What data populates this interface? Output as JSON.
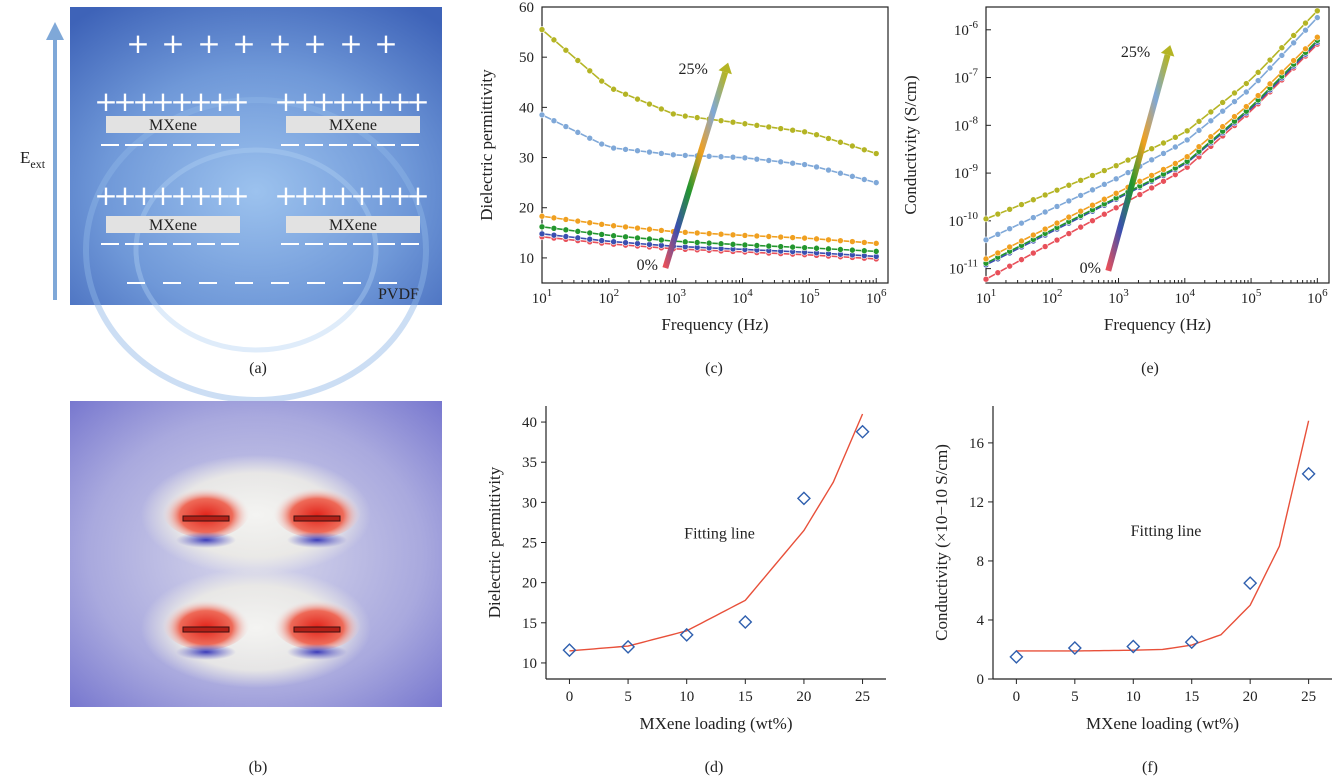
{
  "panels": {
    "a": {
      "label": "(a)",
      "field_label": "E",
      "field_sub": "ext",
      "mxene_label": "MXene",
      "matrix_label": "PVDF",
      "plus": "+",
      "minus": "—"
    },
    "b": {
      "label": "(b)"
    },
    "c": {
      "label": "(c)"
    },
    "d": {
      "label": "(d)"
    },
    "e": {
      "label": "(e)"
    },
    "f": {
      "label": "(f)"
    }
  },
  "colors": {
    "series": [
      "#e8505a",
      "#3a4fb0",
      "#23962e",
      "#f0a020",
      "#7fa8d8",
      "#b4b424"
    ],
    "fit_line": "#e8503a",
    "marker": "#2f5fae",
    "field_arrow": "#7fa8d8",
    "schematic_bg": "#4b74c4"
  },
  "chart_data": [
    {
      "id": "c",
      "type": "line",
      "xlabel": "Frequency (Hz)",
      "ylabel": "Dielectric permittivity",
      "x_scale": "log",
      "xlim": [
        10,
        1500000
      ],
      "ylim": [
        5,
        60
      ],
      "xticks": [
        "10^1",
        "10^2",
        "10^3",
        "10^4",
        "10^5",
        "10^6"
      ],
      "yticks": [
        10,
        20,
        30,
        40,
        50,
        60
      ],
      "annotations": [
        "0%",
        "25%"
      ],
      "series": [
        {
          "x": [
            10,
            100,
            1000,
            10000,
            100000,
            1000000
          ],
          "values": [
            14.2,
            12.8,
            11.8,
            11.2,
            10.6,
            9.8
          ]
        },
        {
          "x": [
            10,
            100,
            1000,
            10000,
            100000,
            1000000
          ],
          "values": [
            14.8,
            13.3,
            12.3,
            11.7,
            11.1,
            10.3
          ]
        },
        {
          "x": [
            10,
            100,
            1000,
            10000,
            100000,
            1000000
          ],
          "values": [
            16.2,
            14.5,
            13.3,
            12.6,
            12.0,
            11.3
          ]
        },
        {
          "x": [
            10,
            100,
            1000,
            10000,
            100000,
            1000000
          ],
          "values": [
            18.3,
            16.5,
            15.2,
            14.5,
            13.9,
            12.9
          ]
        },
        {
          "x": [
            10,
            100,
            1000,
            10000,
            100000,
            1000000
          ],
          "values": [
            38.5,
            32.0,
            30.5,
            30.0,
            28.5,
            25.0
          ]
        },
        {
          "x": [
            10,
            100,
            1000,
            10000,
            100000,
            1000000
          ],
          "values": [
            55.5,
            44.0,
            38.5,
            36.8,
            35.0,
            30.8
          ]
        }
      ]
    },
    {
      "id": "d",
      "type": "scatter",
      "xlabel": "MXene loading (wt%)",
      "ylabel": "Dielectric permittivity",
      "xlim": [
        -2,
        27
      ],
      "ylim": [
        8,
        42
      ],
      "xticks": [
        0,
        5,
        10,
        15,
        20,
        25
      ],
      "yticks": [
        10,
        15,
        20,
        25,
        30,
        35,
        40
      ],
      "annotation": "Fitting line",
      "points": {
        "x": [
          0,
          5,
          10,
          15,
          20,
          25
        ],
        "values": [
          11.6,
          12.0,
          13.5,
          15.1,
          30.5,
          38.8
        ]
      },
      "fit": {
        "x": [
          0,
          5,
          10,
          15,
          20,
          22.5,
          25
        ],
        "values": [
          11.5,
          12.1,
          14.0,
          17.8,
          26.5,
          32.5,
          41.0
        ]
      }
    },
    {
      "id": "e",
      "type": "line",
      "xlabel": "Frequency (Hz)",
      "ylabel": "Conductivity (S/cm)",
      "x_scale": "log",
      "y_scale": "log",
      "xlim": [
        10,
        1500000
      ],
      "ylim": [
        5e-12,
        3e-06
      ],
      "xticks": [
        "10^1",
        "10^2",
        "10^3",
        "10^4",
        "10^5",
        "10^6"
      ],
      "yticks": [
        "10^-11",
        "10^-10",
        "10^-9",
        "10^-8",
        "10^-7",
        "10^-6"
      ],
      "annotations": [
        "0%",
        "25%"
      ],
      "series": [
        {
          "x": [
            10,
            100,
            1000,
            10000,
            100000,
            1000000
          ],
          "values": [
            6e-12,
            3.5e-11,
            2e-10,
            1.2e-09,
            2e-08,
            5e-07
          ]
        },
        {
          "x": [
            10,
            100,
            1000,
            10000,
            100000,
            1000000
          ],
          "values": [
            1.2e-11,
            6e-11,
            3e-10,
            1.5e-09,
            2.2e-08,
            5.5e-07
          ]
        },
        {
          "x": [
            10,
            100,
            1000,
            10000,
            100000,
            1000000
          ],
          "values": [
            1.3e-11,
            6.5e-11,
            3.2e-10,
            1.6e-09,
            2.4e-08,
            6e-07
          ]
        },
        {
          "x": [
            10,
            100,
            1000,
            10000,
            100000,
            1000000
          ],
          "values": [
            1.6e-11,
            8e-11,
            4e-10,
            2e-09,
            3e-08,
            7e-07
          ]
        },
        {
          "x": [
            10,
            100,
            1000,
            10000,
            100000,
            1000000
          ],
          "values": [
            4e-11,
            1.8e-10,
            8e-10,
            4.5e-09,
            6e-08,
            1.8e-06
          ]
        },
        {
          "x": [
            10,
            100,
            1000,
            10000,
            100000,
            1000000
          ],
          "values": [
            1.1e-10,
            4e-10,
            1.5e-09,
            7e-09,
            9e-08,
            2.5e-06
          ]
        }
      ]
    },
    {
      "id": "f",
      "type": "scatter",
      "xlabel": "MXene loading (wt%)",
      "ylabel": "Conductivity (×10−10 S/cm)",
      "xlim": [
        -2,
        27
      ],
      "ylim": [
        0,
        18.5
      ],
      "xticks": [
        0,
        5,
        10,
        15,
        20,
        25
      ],
      "yticks": [
        0,
        4,
        8,
        12,
        16
      ],
      "annotation": "Fitting line",
      "points": {
        "x": [
          0,
          5,
          10,
          15,
          20,
          25
        ],
        "values": [
          1.5,
          2.1,
          2.2,
          2.5,
          6.5,
          13.9
        ]
      },
      "fit": {
        "x": [
          0,
          5,
          10,
          12.5,
          15,
          17.5,
          20,
          22.5,
          25
        ],
        "values": [
          1.9,
          1.9,
          1.95,
          2.0,
          2.3,
          3.0,
          5.0,
          9.0,
          17.5
        ]
      }
    }
  ]
}
